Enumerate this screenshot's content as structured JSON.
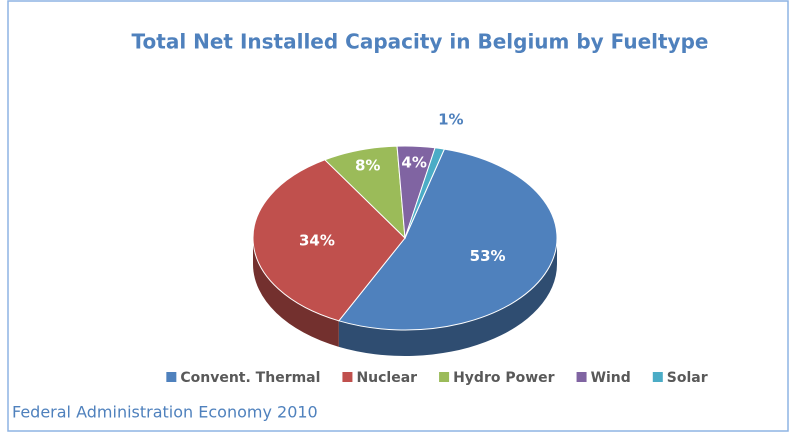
{
  "chart_data": {
    "type": "pie",
    "title": "Total Net Installed Capacity in Belgium by Fueltype",
    "categories": [
      "Convent. Thermal",
      "Nuclear",
      "Hydro Power",
      "Wind",
      "Solar"
    ],
    "values": [
      53,
      34,
      8,
      4,
      1
    ],
    "value_labels": [
      "53%",
      "34%",
      "8%",
      "4%",
      "1%"
    ],
    "colors": [
      "#4f81bd",
      "#c0504d",
      "#9bbb59",
      "#8064a2",
      "#4bacc6"
    ],
    "legend": "bottom",
    "caption": "Federal Administration Economy 2010"
  }
}
